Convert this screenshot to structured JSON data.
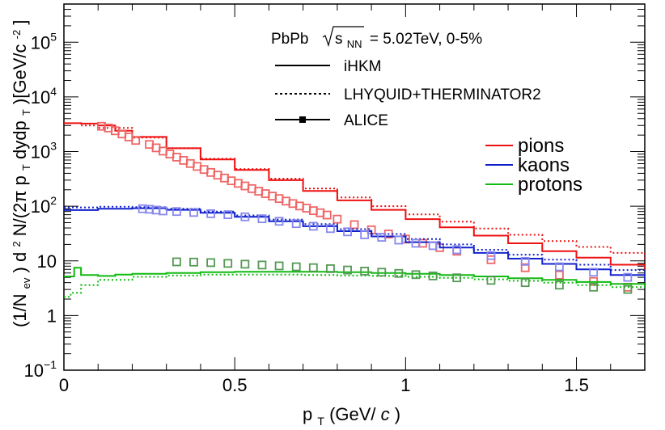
{
  "chart_data": {
    "type": "line",
    "title": "PbPb √sNN = 5.02TeV, 0-5%",
    "title_parts": {
      "system": "PbPb",
      "energy_symbol": "s",
      "energy_subscript": "NN",
      "energy_value": "= 5.02TeV, 0-5%"
    },
    "xlabel": "pT(GeV/c)",
    "xlabel_parts": {
      "p": "p",
      "sub": "T",
      "rest": "(GeV/",
      "c": "c",
      "close": ")"
    },
    "ylabel": "(1/Nev) d2N/(2π pT dydpT)[GeV/c-2]",
    "ylabel_parts": {
      "a": "(1/N",
      "a_sub": "ev",
      "b": ") d",
      "b_sup": "2",
      "c": "N/(2π p",
      "c_sub": "T",
      "d": "dydp",
      "d_sub": "T",
      "e": ")[GeV/c",
      "e_sup": "-2",
      "f": "]"
    },
    "xlim": [
      0,
      1.7
    ],
    "ylim": [
      0.1,
      500000
    ],
    "yscale": "log",
    "x_ticks": [
      0,
      0.5,
      1,
      1.5
    ],
    "x_tick_labels": [
      "0",
      "0.5",
      "1",
      "1.5"
    ],
    "y_ticks": [
      {
        "base": "10",
        "exp": "−1",
        "value": 0.1
      },
      {
        "base": "1",
        "exp": "",
        "value": 1
      },
      {
        "base": "10",
        "exp": "",
        "value": 10
      },
      {
        "base": "10",
        "exp": "2",
        "value": 100
      },
      {
        "base": "10",
        "exp": "3",
        "value": 1000
      },
      {
        "base": "10",
        "exp": "4",
        "value": 10000
      },
      {
        "base": "10",
        "exp": "5",
        "value": 100000
      }
    ],
    "legend_styles": [
      {
        "label": "iHKM",
        "style": "solid"
      },
      {
        "label": "LHYQUID+THERMINATOR2",
        "style": "dotted"
      },
      {
        "label": "ALICE",
        "style": "marker"
      }
    ],
    "legend_species": [
      {
        "label": "pions",
        "color": "#ee1111"
      },
      {
        "label": "kaons",
        "color": "#1122cc"
      },
      {
        "label": "protons",
        "color": "#11bb11"
      }
    ],
    "series": [
      {
        "name": "pions iHKM",
        "species": "pions",
        "style": "solid",
        "color": "#ee1111",
        "x": [
          0.0,
          0.05,
          0.1,
          0.15,
          0.2,
          0.3,
          0.4,
          0.5,
          0.6,
          0.7,
          0.8,
          0.9,
          1.0,
          1.1,
          1.2,
          1.3,
          1.4,
          1.5,
          1.6,
          1.7
        ],
        "y": [
          3300,
          3250,
          3000,
          2400,
          1850,
          1150,
          720,
          460,
          300,
          190,
          128,
          86,
          58,
          41,
          29,
          21,
          15,
          11.5,
          8.5,
          6.8
        ]
      },
      {
        "name": "pions LHYQUID+THERMINATOR2",
        "species": "pions",
        "style": "dotted",
        "color": "#ee1111",
        "x": [
          0.05,
          0.1,
          0.2,
          0.3,
          0.4,
          0.5,
          0.6,
          0.7,
          0.8,
          0.9,
          1.0,
          1.1,
          1.2,
          1.3,
          1.4,
          1.5,
          1.6,
          1.7
        ],
        "y": [
          3000,
          2700,
          1800,
          1150,
          740,
          480,
          320,
          210,
          145,
          100,
          71,
          52,
          39,
          30,
          23,
          18,
          14,
          11
        ]
      },
      {
        "name": "pions ALICE",
        "species": "pions",
        "style": "marker",
        "color": "#ee6666",
        "x": [
          0.11,
          0.13,
          0.15,
          0.17,
          0.19,
          0.21,
          0.25,
          0.27,
          0.29,
          0.31,
          0.33,
          0.35,
          0.37,
          0.39,
          0.41,
          0.43,
          0.45,
          0.47,
          0.49,
          0.51,
          0.53,
          0.55,
          0.57,
          0.59,
          0.61,
          0.63,
          0.65,
          0.67,
          0.69,
          0.71,
          0.73,
          0.75,
          0.77,
          0.8,
          0.85,
          0.9,
          0.95,
          1.0,
          1.05,
          1.1,
          1.15,
          1.25,
          1.35,
          1.45,
          1.55,
          1.65
        ],
        "y": [
          2900,
          2700,
          2400,
          2100,
          1850,
          1600,
          1350,
          1170,
          1020,
          900,
          790,
          690,
          605,
          535,
          470,
          415,
          370,
          328,
          292,
          262,
          235,
          210,
          188,
          170,
          153,
          138,
          124,
          112,
          101,
          92,
          83,
          76,
          69,
          58,
          46,
          37,
          31,
          25,
          21,
          17.5,
          15,
          10.5,
          7.5,
          5.5,
          4.2,
          3.3
        ]
      },
      {
        "name": "kaons iHKM",
        "species": "kaons",
        "style": "solid",
        "color": "#1122cc",
        "x": [
          0.0,
          0.1,
          0.2,
          0.3,
          0.4,
          0.5,
          0.6,
          0.7,
          0.8,
          0.9,
          1.0,
          1.1,
          1.2,
          1.3,
          1.4,
          1.5,
          1.6,
          1.7
        ],
        "y": [
          85,
          90,
          92,
          86,
          76,
          64,
          53,
          43,
          35,
          28,
          22,
          17.5,
          14,
          11,
          8.8,
          7,
          5.5,
          4.3
        ]
      },
      {
        "name": "kaons LHYQUID+THERMINATOR2",
        "species": "kaons",
        "style": "dotted",
        "color": "#1122cc",
        "x": [
          0.0,
          0.1,
          0.2,
          0.3,
          0.4,
          0.5,
          0.6,
          0.7,
          0.8,
          0.9,
          1.0,
          1.1,
          1.2,
          1.3,
          1.4,
          1.5,
          1.6,
          1.7
        ],
        "y": [
          95,
          98,
          96,
          90,
          80,
          68,
          57,
          47,
          38,
          31,
          25,
          20,
          16,
          13,
          10.5,
          8.5,
          6.8,
          5.5
        ]
      },
      {
        "name": "kaons ALICE",
        "species": "kaons",
        "style": "marker",
        "color": "#8888ee",
        "x": [
          0.23,
          0.25,
          0.27,
          0.29,
          0.33,
          0.38,
          0.43,
          0.48,
          0.53,
          0.58,
          0.63,
          0.68,
          0.73,
          0.78,
          0.83,
          0.88,
          0.93,
          0.98,
          1.03,
          1.08,
          1.15,
          1.25,
          1.35,
          1.45,
          1.55,
          1.65
        ],
        "y": [
          90,
          88,
          85,
          82,
          80,
          77,
          73,
          70,
          64,
          59,
          53,
          48,
          43,
          39,
          34,
          30,
          27,
          24,
          21,
          19,
          16,
          12.5,
          9.8,
          7.8,
          6.2,
          5.0
        ]
      },
      {
        "name": "protons iHKM",
        "species": "protons",
        "style": "solid",
        "color": "#11bb11",
        "x": [
          0.0,
          0.03,
          0.05,
          0.1,
          0.15,
          0.2,
          0.3,
          0.4,
          0.5,
          0.6,
          0.7,
          0.8,
          0.9,
          1.0,
          1.1,
          1.2,
          1.3,
          1.4,
          1.5,
          1.6,
          1.7
        ],
        "y": [
          5.2,
          7.5,
          5.5,
          5.3,
          5.6,
          5.8,
          6.0,
          6.2,
          6.3,
          6.3,
          6.3,
          6.2,
          6.0,
          5.8,
          5.5,
          5.2,
          4.8,
          4.5,
          4.1,
          3.8,
          3.4
        ]
      },
      {
        "name": "protons LHYQUID+THERMINATOR2",
        "species": "protons",
        "style": "dotted",
        "color": "#11bb11",
        "x": [
          0.0,
          0.02,
          0.05,
          0.1,
          0.2,
          0.3,
          0.4,
          0.5,
          0.6,
          0.7,
          0.8,
          0.9,
          1.0,
          1.1,
          1.2,
          1.3,
          1.4,
          1.5,
          1.6,
          1.7
        ],
        "y": [
          2.2,
          2.6,
          3.6,
          4.5,
          5.1,
          5.4,
          5.6,
          5.6,
          5.6,
          5.5,
          5.4,
          5.3,
          5.1,
          4.9,
          4.6,
          4.3,
          4.0,
          3.6,
          3.3,
          3.0
        ]
      },
      {
        "name": "protons ALICE",
        "species": "protons",
        "style": "marker",
        "color": "#559955",
        "x": [
          0.33,
          0.38,
          0.43,
          0.48,
          0.53,
          0.58,
          0.63,
          0.68,
          0.73,
          0.78,
          0.83,
          0.88,
          0.93,
          0.98,
          1.03,
          1.08,
          1.15,
          1.25,
          1.35,
          1.45,
          1.55,
          1.65
        ],
        "y": [
          9.6,
          9.5,
          9.3,
          9.0,
          8.7,
          8.4,
          8.1,
          7.8,
          7.5,
          7.2,
          6.8,
          6.5,
          6.2,
          5.9,
          5.6,
          5.3,
          4.9,
          4.4,
          4.0,
          3.6,
          3.3,
          3.0
        ]
      }
    ]
  }
}
